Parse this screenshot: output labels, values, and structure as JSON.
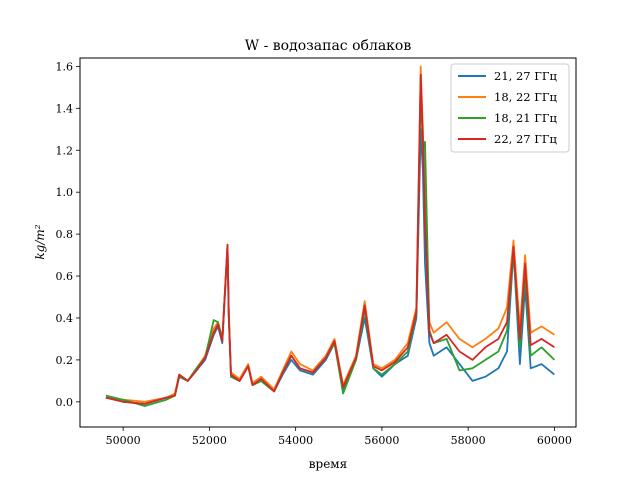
{
  "chart_data": {
    "type": "line",
    "title": "W - водозапас облаков",
    "xlabel": "время",
    "ylabel": "kg/m²",
    "xlim": [
      49000,
      60500
    ],
    "ylim": [
      -0.12,
      1.64
    ],
    "x_ticks": [
      50000,
      52000,
      54000,
      56000,
      58000,
      60000
    ],
    "x_tick_labels": [
      "50000",
      "52000",
      "54000",
      "56000",
      "58000",
      "60000"
    ],
    "y_ticks": [
      0.0,
      0.2,
      0.4,
      0.6,
      0.8,
      1.0,
      1.2,
      1.4,
      1.6
    ],
    "y_tick_labels": [
      "0.0",
      "0.2",
      "0.4",
      "0.6",
      "0.8",
      "1.0",
      "1.2",
      "1.4",
      "1.6"
    ],
    "grid": false,
    "legend_position": "top-right",
    "x": [
      49600,
      50000,
      50500,
      51000,
      51200,
      51300,
      51500,
      51700,
      51900,
      52100,
      52200,
      52300,
      52420,
      52450,
      52500,
      52700,
      52900,
      53000,
      53200,
      53500,
      53700,
      53900,
      54100,
      54400,
      54700,
      54900,
      55100,
      55400,
      55600,
      55800,
      56000,
      56300,
      56600,
      56800,
      56900,
      56950,
      57000,
      57100,
      57200,
      57500,
      57800,
      58100,
      58400,
      58700,
      58900,
      59050,
      59200,
      59320,
      59450,
      59700,
      60000
    ],
    "series": [
      {
        "name": "21, 27 ГГц",
        "color": "#1f77b4",
        "values": [
          0.02,
          0.0,
          -0.01,
          0.02,
          0.03,
          0.12,
          0.1,
          0.15,
          0.2,
          0.32,
          0.36,
          0.28,
          0.74,
          0.4,
          0.12,
          0.1,
          0.17,
          0.08,
          0.1,
          0.05,
          0.13,
          0.2,
          0.15,
          0.13,
          0.2,
          0.28,
          0.06,
          0.2,
          0.4,
          0.16,
          0.12,
          0.18,
          0.22,
          0.4,
          1.3,
          1.1,
          0.66,
          0.28,
          0.22,
          0.26,
          0.18,
          0.1,
          0.12,
          0.16,
          0.24,
          0.72,
          0.18,
          0.55,
          0.16,
          0.18,
          0.13
        ]
      },
      {
        "name": "18, 22 ГГц",
        "color": "#ff7f0e",
        "values": [
          0.02,
          0.01,
          0.0,
          0.02,
          0.04,
          0.13,
          0.1,
          0.16,
          0.22,
          0.35,
          0.38,
          0.3,
          0.75,
          0.42,
          0.14,
          0.11,
          0.18,
          0.09,
          0.12,
          0.06,
          0.15,
          0.24,
          0.18,
          0.15,
          0.22,
          0.3,
          0.08,
          0.22,
          0.48,
          0.18,
          0.16,
          0.2,
          0.28,
          0.45,
          1.6,
          1.3,
          0.95,
          0.38,
          0.33,
          0.38,
          0.3,
          0.26,
          0.3,
          0.35,
          0.45,
          0.77,
          0.35,
          0.7,
          0.33,
          0.36,
          0.32
        ]
      },
      {
        "name": "18, 21 ГГц",
        "color": "#2ca02c",
        "values": [
          0.03,
          0.01,
          -0.02,
          0.01,
          0.03,
          0.12,
          0.1,
          0.16,
          0.21,
          0.39,
          0.38,
          0.3,
          0.74,
          0.41,
          0.12,
          0.1,
          0.17,
          0.08,
          0.1,
          0.05,
          0.14,
          0.22,
          0.16,
          0.14,
          0.21,
          0.28,
          0.04,
          0.2,
          0.44,
          0.16,
          0.13,
          0.18,
          0.24,
          0.42,
          1.5,
          1.2,
          1.24,
          0.34,
          0.28,
          0.3,
          0.15,
          0.16,
          0.2,
          0.24,
          0.34,
          0.72,
          0.26,
          0.62,
          0.22,
          0.26,
          0.2
        ]
      },
      {
        "name": "22, 27 ГГц",
        "color": "#d62728",
        "values": [
          0.02,
          0.0,
          -0.01,
          0.02,
          0.03,
          0.13,
          0.1,
          0.15,
          0.21,
          0.33,
          0.37,
          0.29,
          0.75,
          0.41,
          0.13,
          0.1,
          0.17,
          0.08,
          0.11,
          0.05,
          0.14,
          0.22,
          0.16,
          0.14,
          0.21,
          0.29,
          0.07,
          0.21,
          0.46,
          0.17,
          0.15,
          0.19,
          0.26,
          0.43,
          1.56,
          1.25,
          0.86,
          0.33,
          0.28,
          0.32,
          0.24,
          0.2,
          0.26,
          0.3,
          0.38,
          0.74,
          0.3,
          0.66,
          0.27,
          0.3,
          0.26
        ]
      }
    ]
  }
}
